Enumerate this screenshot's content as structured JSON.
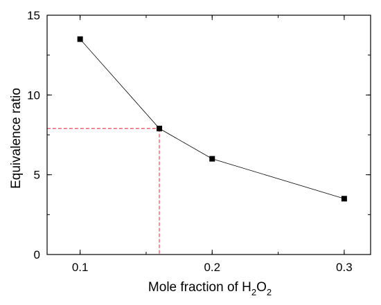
{
  "chart_data": {
    "type": "line",
    "title": "",
    "xlabel": {
      "main": "Mole fraction of H",
      "sub1": "2",
      "mid": "O",
      "sub2": "2"
    },
    "ylabel": "Equivalence ratio",
    "xlim": [
      0.075,
      0.32
    ],
    "ylim": [
      0,
      15
    ],
    "xticks": [
      0.1,
      0.2,
      0.3
    ],
    "xtick_labels": [
      "0.1",
      "0.2",
      "0.3"
    ],
    "yticks": [
      0,
      5,
      10,
      15
    ],
    "ytick_labels": [
      "0",
      "5",
      "10",
      "15"
    ],
    "x_minor_step": 0.05,
    "y_minor_step": 2.5,
    "grid": false,
    "series": [
      {
        "x": [
          0.1,
          0.16,
          0.2,
          0.3
        ],
        "y": [
          13.5,
          7.9,
          6.0,
          3.5
        ],
        "color": "#000000",
        "marker": "square"
      }
    ],
    "annotations": [
      {
        "type": "dashed-guide",
        "x": 0.16,
        "y": 7.9,
        "color": "#e8202a"
      }
    ]
  }
}
